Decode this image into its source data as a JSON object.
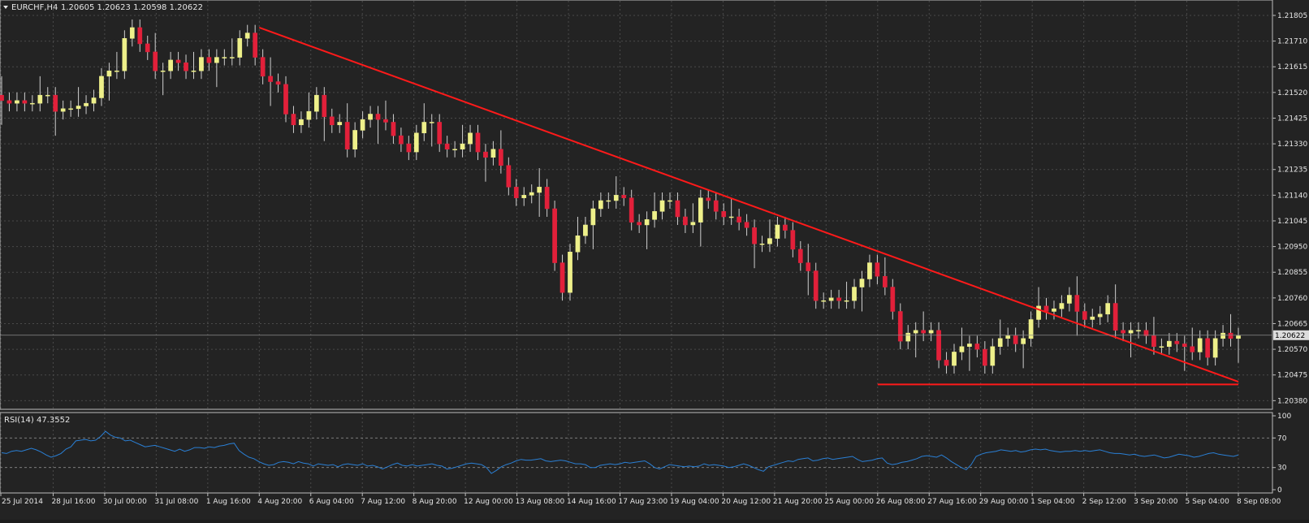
{
  "header": {
    "symbol_label": "EURCHF,H4",
    "ohlc": "1.20605 1.20623 1.20598 1.20622"
  },
  "indicator": {
    "label": "RSI(14) 47.3552",
    "levels": [
      100,
      70,
      30,
      0
    ]
  },
  "colors": {
    "background": "#232323",
    "grid": "#4a4a4a",
    "up_candle": "#eef08a",
    "down_candle": "#e2203a",
    "wick": "#cfcfcf",
    "trendline": "#ff1a1a",
    "rsi_line": "#2a7fd4",
    "text": "#e6e6e6",
    "price_tag_bg": "#dcdcdc"
  },
  "chart_data": [
    {
      "type": "candlestick",
      "symbol": "EURCHF",
      "timeframe": "H4",
      "y_ticks": [
        "1.21805",
        "1.21710",
        "1.21615",
        "1.21520",
        "1.21425",
        "1.21330",
        "1.21235",
        "1.21140",
        "1.21045",
        "1.20950",
        "1.20855",
        "1.20760",
        "1.20665",
        "1.20570",
        "1.20475",
        "1.20380"
      ],
      "ylim": [
        1.2036,
        1.2185
      ],
      "current_price": "1.20622",
      "x_labels": [
        "25 Jul 2014",
        "28 Jul 16:00",
        "30 Jul 00:00",
        "31 Jul 08:00",
        "1 Aug 16:00",
        "4 Aug 20:00",
        "6 Aug 04:00",
        "7 Aug 12:00",
        "8 Aug 20:00",
        "12 Aug 00:00",
        "13 Aug 08:00",
        "14 Aug 16:00",
        "17 Aug 23:00",
        "19 Aug 04:00",
        "20 Aug 12:00",
        "21 Aug 20:00",
        "25 Aug 00:00",
        "26 Aug 08:00",
        "27 Aug 16:00",
        "29 Aug 00:00",
        "1 Sep 04:00",
        "2 Sep 12:00",
        "3 Sep 20:00",
        "5 Sep 04:00",
        "8 Sep 08:00"
      ],
      "closes": [
        1.2149,
        1.2148,
        1.2149,
        1.2148,
        1.2148,
        1.2151,
        1.2151,
        1.2145,
        1.2146,
        1.2146,
        1.2147,
        1.2148,
        1.215,
        1.2158,
        1.216,
        1.216,
        1.2172,
        1.2176,
        1.217,
        1.2167,
        1.216,
        1.216,
        1.2164,
        1.2163,
        1.216,
        1.216,
        1.2165,
        1.2163,
        1.2165,
        1.2165,
        1.2165,
        1.2172,
        1.2174,
        1.2165,
        1.2158,
        1.2156,
        1.2155,
        1.2144,
        1.214,
        1.2142,
        1.2145,
        1.2151,
        1.2143,
        1.214,
        1.2141,
        1.2131,
        1.2138,
        1.2142,
        1.2144,
        1.2142,
        1.2141,
        1.2136,
        1.2133,
        1.213,
        1.2137,
        1.2141,
        1.2141,
        1.2133,
        1.2131,
        1.2131,
        1.2133,
        1.2137,
        1.213,
        1.2128,
        1.2131,
        1.2125,
        1.2117,
        1.2113,
        1.2114,
        1.2115,
        1.2117,
        1.2109,
        1.2089,
        1.2078,
        1.2093,
        1.2099,
        1.2103,
        1.2109,
        1.2112,
        1.2112,
        1.2114,
        1.2113,
        1.2104,
        1.2103,
        1.2105,
        1.2108,
        1.2112,
        1.2112,
        1.2106,
        1.2103,
        1.2104,
        1.2113,
        1.2112,
        1.2108,
        1.2106,
        1.2106,
        1.2104,
        1.2102,
        1.2096,
        1.2096,
        1.2098,
        1.2103,
        1.2101,
        1.2094,
        1.2089,
        1.2086,
        1.2075,
        1.2075,
        1.2076,
        1.2075,
        1.2075,
        1.208,
        1.2083,
        1.2089,
        1.2084,
        1.208,
        1.2071,
        1.206,
        1.2063,
        1.2064,
        1.2063,
        1.2064,
        1.2053,
        1.2051,
        1.2056,
        1.2058,
        1.2059,
        1.2057,
        1.2051,
        1.2058,
        1.2061,
        1.2062,
        1.2059,
        1.2061,
        1.2068,
        1.2073,
        1.2071,
        1.2072,
        1.2074,
        1.2077,
        1.2071,
        1.2068,
        1.2069,
        1.207,
        1.2074,
        1.2064,
        1.2063,
        1.2064,
        1.2064,
        1.2062,
        1.2058,
        1.2058,
        1.206,
        1.2059,
        1.2058,
        1.2056,
        1.2061,
        1.2054,
        1.2061,
        1.2063,
        1.2061,
        1.2062
      ],
      "overlays": [
        {
          "kind": "trendline",
          "from": {
            "x": "4 Aug 20:00",
            "y": 1.2176
          },
          "to": {
            "x": "8 Sep 08:00",
            "y": 1.2045
          }
        },
        {
          "kind": "horizontal-segment",
          "y": 1.2044,
          "from_x": "26 Aug 08:00",
          "to_x": "8 Sep 08:00"
        }
      ]
    },
    {
      "type": "line",
      "title": "RSI(14) 47.3552",
      "ylim": [
        0,
        100
      ],
      "levels": [
        70,
        30
      ],
      "y_ticks": [
        "100",
        "70",
        "30",
        "0"
      ],
      "values": [
        50,
        49,
        52,
        53,
        52,
        54,
        56,
        54,
        51,
        47,
        44,
        46,
        49,
        55,
        58,
        66,
        67,
        68,
        66,
        67,
        72,
        79,
        74,
        71,
        70,
        66,
        67,
        64,
        61,
        58,
        59,
        60,
        58,
        56,
        54,
        52,
        55,
        52,
        54,
        57,
        57,
        56,
        58,
        57,
        59,
        60,
        62,
        63,
        53,
        48,
        44,
        42,
        38,
        35,
        33,
        34,
        37,
        38,
        37,
        35,
        38,
        36,
        35,
        32,
        35,
        34,
        33,
        34,
        31,
        34,
        35,
        34,
        33,
        35,
        32,
        33,
        31,
        28,
        31,
        34,
        36,
        33,
        32,
        34,
        32,
        33,
        34,
        35,
        33,
        32,
        28,
        29,
        31,
        33,
        35,
        36,
        35,
        34,
        30,
        22,
        26,
        31,
        34,
        36,
        39,
        41,
        40,
        40,
        41,
        42,
        39,
        38,
        39,
        40,
        39,
        37,
        35,
        35,
        34,
        30,
        30,
        33,
        34,
        35,
        34,
        35,
        37,
        36,
        37,
        38,
        39,
        35,
        30,
        28,
        31,
        34,
        33,
        32,
        31,
        32,
        31,
        32,
        35,
        33,
        34,
        33,
        32,
        30,
        31,
        33,
        35,
        33,
        30,
        27,
        25,
        31,
        33,
        35,
        37,
        39,
        38,
        41,
        42,
        43,
        39,
        40,
        42,
        43,
        41,
        42,
        43,
        44,
        45,
        41,
        38,
        39,
        40,
        42,
        43,
        36,
        34,
        35,
        37,
        38,
        40,
        42,
        45,
        46,
        45,
        44,
        47,
        43,
        38,
        34,
        30,
        27,
        34,
        45,
        48,
        50,
        51,
        52,
        54,
        53,
        52,
        53,
        51,
        52,
        54,
        55,
        54,
        55,
        53,
        52,
        51,
        52,
        52,
        53,
        52,
        53,
        52,
        53,
        54,
        52,
        50,
        49,
        49,
        48,
        47,
        48,
        46,
        45,
        46,
        47,
        45,
        43,
        44,
        46,
        48,
        47,
        46,
        44,
        45,
        47,
        49,
        50,
        48,
        47,
        46,
        45,
        47
      ]
    }
  ]
}
